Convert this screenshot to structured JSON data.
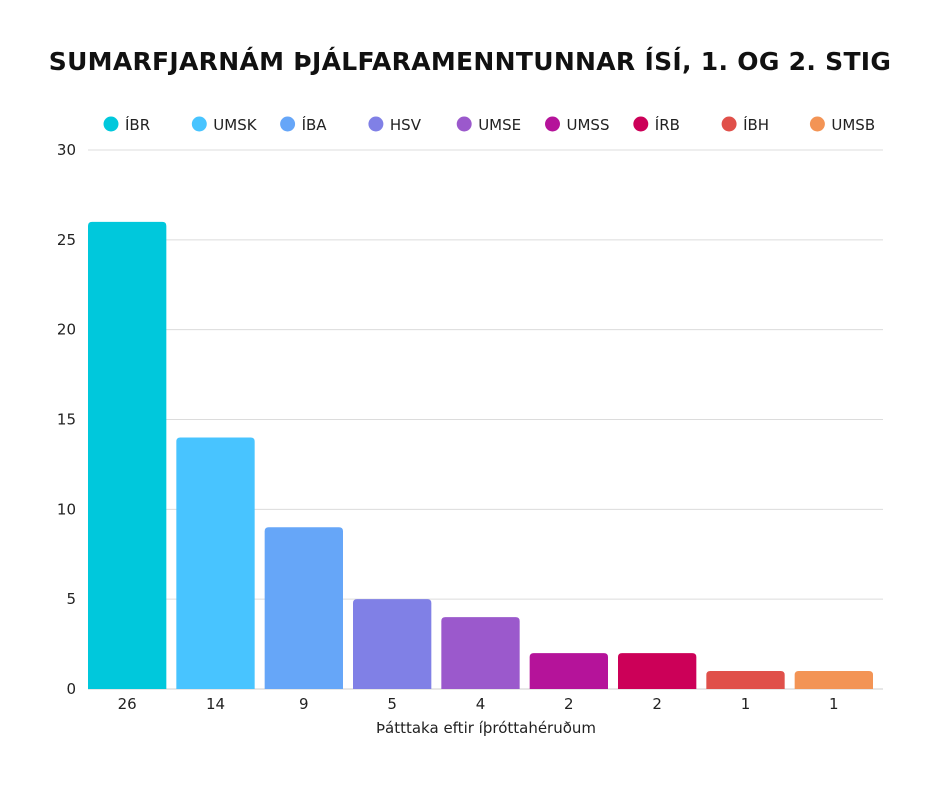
{
  "chart_data": {
    "type": "bar",
    "title": "SUMARFJARNÁM ÞJÁLFARAMENNTUNNAR ÍSÍ, 1. OG 2. STIG",
    "xlabel": "Þátttaka eftir íþróttahéruðum",
    "ylabel": "",
    "ylim": [
      0,
      30
    ],
    "yticks": [
      0,
      5,
      10,
      15,
      20,
      25,
      30
    ],
    "grid": true,
    "legend_position": "top",
    "categories": [
      "26",
      "14",
      "9",
      "5",
      "4",
      "2",
      "2",
      "1",
      "1"
    ],
    "series": [
      {
        "name": "ÍBR",
        "color": "#00c8dc",
        "values": [
          26,
          0,
          0,
          0,
          0,
          0,
          0,
          0,
          0
        ]
      },
      {
        "name": "UMSK",
        "color": "#48c4ff",
        "values": [
          0,
          14,
          0,
          0,
          0,
          0,
          0,
          0,
          0
        ]
      },
      {
        "name": "ÍBA",
        "color": "#66a6f8",
        "values": [
          0,
          0,
          9,
          0,
          0,
          0,
          0,
          0,
          0
        ]
      },
      {
        "name": "HSV",
        "color": "#8080e6",
        "values": [
          0,
          0,
          0,
          5,
          0,
          0,
          0,
          0,
          0
        ]
      },
      {
        "name": "UMSE",
        "color": "#9b59cc",
        "values": [
          0,
          0,
          0,
          0,
          4,
          0,
          0,
          0,
          0
        ]
      },
      {
        "name": "UMSS",
        "color": "#b5139a",
        "values": [
          0,
          0,
          0,
          0,
          0,
          2,
          0,
          0,
          0
        ]
      },
      {
        "name": "ÍRB",
        "color": "#cc0058",
        "values": [
          0,
          0,
          0,
          0,
          0,
          0,
          2,
          0,
          0
        ]
      },
      {
        "name": "ÍBH",
        "color": "#e0504a",
        "values": [
          0,
          0,
          0,
          0,
          0,
          0,
          0,
          1,
          0
        ]
      },
      {
        "name": "UMSB",
        "color": "#f39455",
        "values": [
          0,
          0,
          0,
          0,
          0,
          0,
          0,
          0,
          1
        ]
      }
    ]
  }
}
